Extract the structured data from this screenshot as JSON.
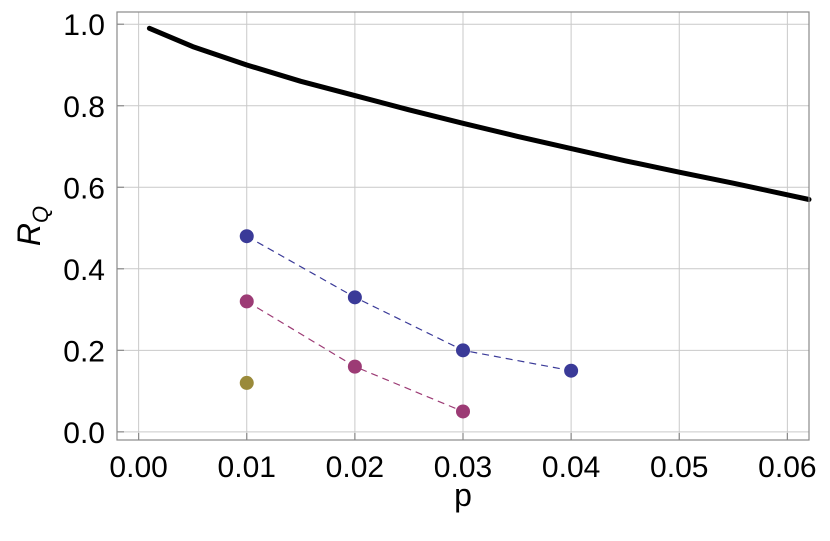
{
  "chart_data": {
    "type": "line",
    "xlabel": "p",
    "ylabel": "R",
    "ylabel_subscript": "Q",
    "xlim": [
      -0.002,
      0.062
    ],
    "ylim": [
      -0.02,
      1.03
    ],
    "grid": true,
    "x_ticks": [
      0.0,
      0.01,
      0.02,
      0.03,
      0.04,
      0.05,
      0.06
    ],
    "x_tick_labels": [
      "0.00",
      "0.01",
      "0.02",
      "0.03",
      "0.04",
      "0.05",
      "0.06"
    ],
    "y_ticks": [
      0.0,
      0.2,
      0.4,
      0.6,
      0.8,
      1.0
    ],
    "y_tick_labels": [
      "0.0",
      "0.2",
      "0.4",
      "0.6",
      "0.8",
      "1.0"
    ],
    "series": [
      {
        "style": "solid",
        "color": "#000000",
        "x": [
          0.001,
          0.005,
          0.01,
          0.015,
          0.02,
          0.025,
          0.03,
          0.035,
          0.04,
          0.045,
          0.05,
          0.055,
          0.062
        ],
        "y": [
          0.99,
          0.945,
          0.9,
          0.86,
          0.825,
          0.79,
          0.757,
          0.725,
          0.695,
          0.665,
          0.637,
          0.61,
          0.57
        ]
      },
      {
        "style": "dashed-markers",
        "color": "#3a3a98",
        "x": [
          0.01,
          0.02,
          0.03,
          0.04
        ],
        "y": [
          0.48,
          0.33,
          0.2,
          0.15
        ]
      },
      {
        "style": "dashed-markers",
        "color": "#9c3b75",
        "x": [
          0.01,
          0.02,
          0.03
        ],
        "y": [
          0.32,
          0.16,
          0.05
        ]
      },
      {
        "style": "markers",
        "color": "#9a8a3a",
        "x": [
          0.01
        ],
        "y": [
          0.12
        ]
      }
    ]
  }
}
